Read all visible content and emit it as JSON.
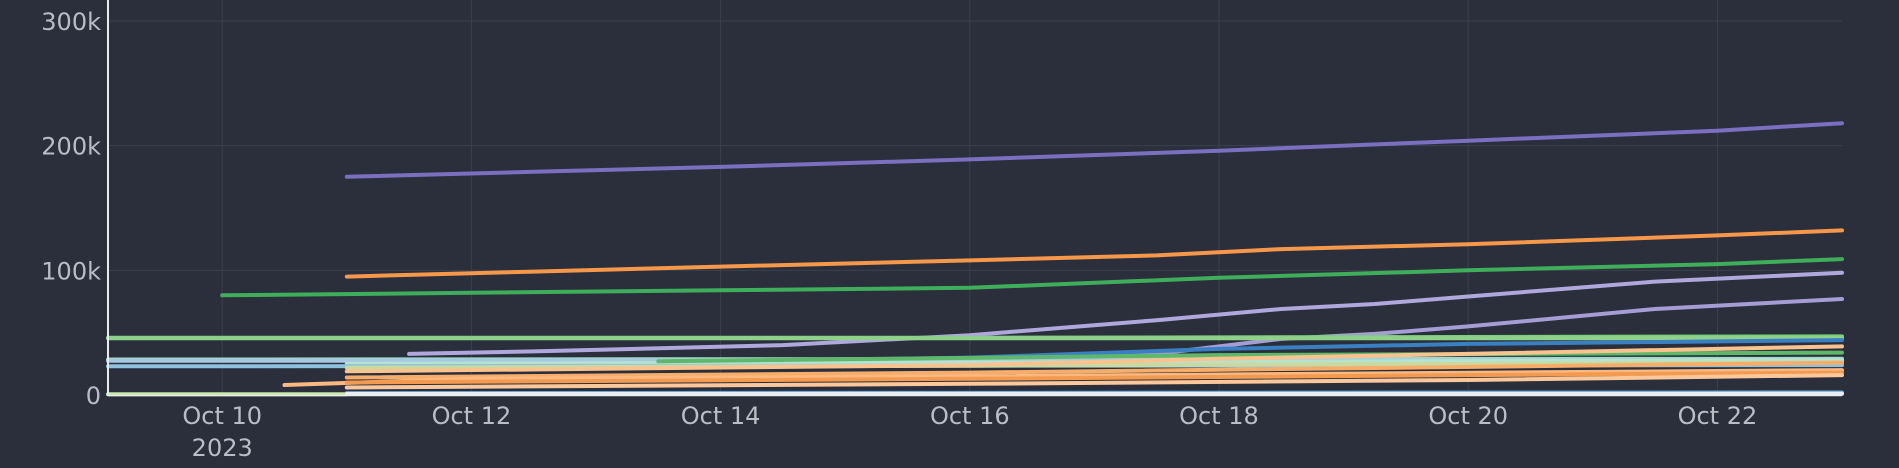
{
  "chart_data": {
    "type": "line",
    "title": "",
    "xlabel": "",
    "ylabel": "",
    "x_ticks": [
      {
        "date": "2023-10-10",
        "label": "Oct 10",
        "sublabel": "2023"
      },
      {
        "date": "2023-10-12",
        "label": "Oct 12"
      },
      {
        "date": "2023-10-14",
        "label": "Oct 14"
      },
      {
        "date": "2023-10-16",
        "label": "Oct 16"
      },
      {
        "date": "2023-10-18",
        "label": "Oct 18"
      },
      {
        "date": "2023-10-20",
        "label": "Oct 20"
      },
      {
        "date": "2023-10-22",
        "label": "Oct 22"
      }
    ],
    "y_ticks": [
      {
        "value": 0,
        "label": "0"
      },
      {
        "value": 100000,
        "label": "100k"
      },
      {
        "value": 200000,
        "label": "200k"
      },
      {
        "value": 300000,
        "label": "300k"
      }
    ],
    "xlim": [
      "2023-10-09 02:00",
      "2023-10-23"
    ],
    "ylim": [
      0,
      300000
    ],
    "grid": true,
    "legend": "none",
    "series": [
      {
        "color": "#7b6fc0",
        "points": [
          [
            "2023-10-11",
            175000
          ],
          [
            "2023-10-12 12:00",
            179000
          ],
          [
            "2023-10-14",
            183000
          ],
          [
            "2023-10-16",
            189000
          ],
          [
            "2023-10-18",
            196000
          ],
          [
            "2023-10-20",
            204000
          ],
          [
            "2023-10-22",
            212000
          ],
          [
            "2023-10-23",
            218000
          ]
        ]
      },
      {
        "color": "#f5984a",
        "points": [
          [
            "2023-10-11",
            95000
          ],
          [
            "2023-10-12 12:00",
            99000
          ],
          [
            "2023-10-14",
            103000
          ],
          [
            "2023-10-16",
            108000
          ],
          [
            "2023-10-17 12:00",
            112000
          ],
          [
            "2023-10-18 12:00",
            117000
          ],
          [
            "2023-10-20",
            121000
          ],
          [
            "2023-10-22",
            128000
          ],
          [
            "2023-10-23",
            132000
          ]
        ]
      },
      {
        "color": "#3fae5a",
        "points": [
          [
            "2023-10-10",
            80000
          ],
          [
            "2023-10-12",
            82000
          ],
          [
            "2023-10-14",
            84000
          ],
          [
            "2023-10-16",
            86000
          ],
          [
            "2023-10-18",
            94000
          ],
          [
            "2023-10-20",
            100000
          ],
          [
            "2023-10-22",
            105000
          ],
          [
            "2023-10-23",
            109000
          ]
        ]
      },
      {
        "color": "#b0a8dc",
        "points": [
          [
            "2023-10-11 12:00",
            33000
          ],
          [
            "2023-10-12 12:00",
            35000
          ],
          [
            "2023-10-14 12:00",
            40000
          ],
          [
            "2023-10-16",
            48000
          ],
          [
            "2023-10-17 12:00",
            60000
          ],
          [
            "2023-10-18 12:00",
            69000
          ],
          [
            "2023-10-19 06:00",
            73000
          ],
          [
            "2023-10-20",
            79000
          ],
          [
            "2023-10-21 12:00",
            91000
          ],
          [
            "2023-10-23",
            98000
          ]
        ]
      },
      {
        "color": "#a59dd4",
        "points": [
          [
            "2023-10-16",
            24000
          ],
          [
            "2023-10-17 12:00",
            33000
          ],
          [
            "2023-10-18 12:00",
            45000
          ],
          [
            "2023-10-19 06:00",
            49000
          ],
          [
            "2023-10-20",
            55000
          ],
          [
            "2023-10-21 12:00",
            69000
          ],
          [
            "2023-10-23",
            77000
          ]
        ]
      },
      {
        "color": "#7ccf7a",
        "points": [
          [
            "2023-10-09 02:00",
            46000
          ],
          [
            "2023-10-16",
            46000
          ],
          [
            "2023-10-23",
            47000
          ]
        ]
      },
      {
        "color": "#8fd08a",
        "points": [
          [
            "2023-10-09 02:00",
            45500
          ],
          [
            "2023-10-23",
            45500
          ]
        ]
      },
      {
        "color": "#3a7fc1",
        "points": [
          [
            "2023-10-13 12:00",
            26000
          ],
          [
            "2023-10-16",
            30000
          ],
          [
            "2023-10-18",
            37000
          ],
          [
            "2023-10-20",
            41000
          ],
          [
            "2023-10-22",
            43000
          ],
          [
            "2023-10-23",
            44000
          ]
        ]
      },
      {
        "color": "#9fd8c8",
        "points": [
          [
            "2023-10-09 02:00",
            28500
          ],
          [
            "2023-10-23",
            29000
          ]
        ]
      },
      {
        "color": "#a7c8e4",
        "points": [
          [
            "2023-10-09 02:00",
            27500
          ],
          [
            "2023-10-23",
            27500
          ]
        ]
      },
      {
        "color": "#b6e2d0",
        "points": [
          [
            "2023-10-11",
            25000
          ],
          [
            "2023-10-16",
            26000
          ],
          [
            "2023-10-23",
            28000
          ]
        ]
      },
      {
        "color": "#8ec1dd",
        "points": [
          [
            "2023-10-09 02:00",
            23000
          ],
          [
            "2023-10-23",
            24000
          ]
        ]
      },
      {
        "color": "#c9d9a0",
        "points": [
          [
            "2023-10-11",
            22000
          ],
          [
            "2023-10-16",
            23500
          ],
          [
            "2023-10-23",
            26000
          ]
        ]
      },
      {
        "color": "#5fb86a",
        "points": [
          [
            "2023-10-13 12:00",
            27000
          ],
          [
            "2023-10-18",
            32000
          ],
          [
            "2023-10-23",
            34000
          ]
        ]
      },
      {
        "color": "#f9c28e",
        "points": [
          [
            "2023-10-11",
            19000
          ],
          [
            "2023-10-16",
            24000
          ],
          [
            "2023-10-18",
            29000
          ],
          [
            "2023-10-23",
            39000
          ]
        ]
      },
      {
        "color": "#f7ad6a",
        "points": [
          [
            "2023-10-11",
            14000
          ],
          [
            "2023-10-16",
            18000
          ],
          [
            "2023-10-23",
            26000
          ]
        ]
      },
      {
        "color": "#fbb880",
        "points": [
          [
            "2023-10-10 12:00",
            8000
          ],
          [
            "2023-10-12",
            13000
          ],
          [
            "2023-10-16",
            15000
          ],
          [
            "2023-10-23",
            20000
          ]
        ]
      },
      {
        "color": "#f29a50",
        "points": [
          [
            "2023-10-11",
            10000
          ],
          [
            "2023-10-16",
            13000
          ],
          [
            "2023-10-20",
            16000
          ],
          [
            "2023-10-23",
            18000
          ]
        ]
      },
      {
        "color": "#fcc79a",
        "points": [
          [
            "2023-10-11",
            6000
          ],
          [
            "2023-10-16",
            9000
          ],
          [
            "2023-10-20",
            12000
          ],
          [
            "2023-10-23",
            16000
          ]
        ]
      },
      {
        "color": "#c7e9a8",
        "points": [
          [
            "2023-10-09 02:00",
            600
          ],
          [
            "2023-10-11",
            600
          ]
        ]
      },
      {
        "color": "#6fa8d6",
        "points": [
          [
            "2023-10-11",
            1500
          ],
          [
            "2023-10-23",
            2000
          ]
        ]
      },
      {
        "color": "#e8eef6",
        "points": [
          [
            "2023-10-11",
            800
          ],
          [
            "2023-10-23",
            1000
          ]
        ]
      }
    ]
  }
}
